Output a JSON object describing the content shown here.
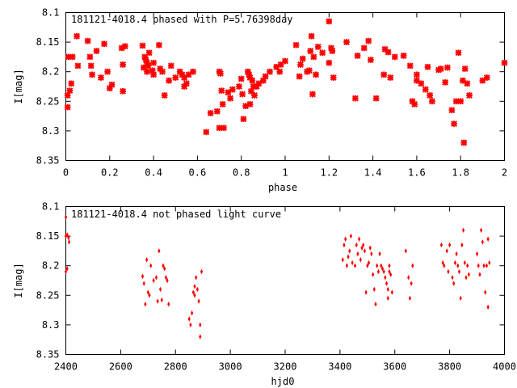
{
  "colors": {
    "points": "#ff0000",
    "axes": "#000000",
    "background": "#ffffff"
  },
  "chart_data": [
    {
      "type": "scatter",
      "title": "181121-4018.4 phased with P=5.76398day",
      "xlabel": "phase",
      "ylabel": "I[mag]",
      "xlim": [
        0,
        2
      ],
      "ylim": [
        8.35,
        8.1
      ],
      "y_inverted": true,
      "grid": false,
      "xticks": [
        "0",
        "0.2",
        "0.4",
        "0.6",
        "0.8",
        "1",
        "1.2",
        "1.4",
        "1.6",
        "1.8",
        "2"
      ],
      "yticks": [
        "8.1",
        "8.15",
        "8.2",
        "8.25",
        "8.3",
        "8.35"
      ],
      "marker": "filled-star",
      "series": [
        {
          "points": [
            [
              0.008,
              8.24
            ],
            [
              0.008,
              8.26
            ],
            [
              0.012,
              8.175
            ],
            [
              0.018,
              8.232
            ],
            [
              0.025,
              8.22
            ],
            [
              0.03,
              8.175
            ],
            [
              0.05,
              8.14
            ],
            [
              0.055,
              8.19
            ],
            [
              0.1,
              8.148
            ],
            [
              0.11,
              8.175
            ],
            [
              0.115,
              8.19
            ],
            [
              0.12,
              8.205
            ],
            [
              0.14,
              8.165
            ],
            [
              0.16,
              8.21
            ],
            [
              0.175,
              8.153
            ],
            [
              0.19,
              8.2
            ],
            [
              0.2,
              8.228
            ],
            [
              0.21,
              8.222
            ],
            [
              0.255,
              8.16
            ],
            [
              0.26,
              8.188
            ],
            [
              0.26,
              8.233
            ],
            [
              0.27,
              8.157
            ],
            [
              0.35,
              8.156
            ],
            [
              0.355,
              8.193
            ],
            [
              0.36,
              8.175
            ],
            [
              0.365,
              8.18
            ],
            [
              0.37,
              8.185
            ],
            [
              0.375,
              8.19
            ],
            [
              0.37,
              8.2
            ],
            [
              0.38,
              8.168
            ],
            [
              0.395,
              8.198
            ],
            [
              0.4,
              8.205
            ],
            [
              0.4,
              8.185
            ],
            [
              0.425,
              8.155
            ],
            [
              0.43,
              8.195
            ],
            [
              0.44,
              8.2
            ],
            [
              0.45,
              8.24
            ],
            [
              0.47,
              8.215
            ],
            [
              0.48,
              8.19
            ],
            [
              0.5,
              8.21
            ],
            [
              0.52,
              8.2
            ],
            [
              0.53,
              8.205
            ],
            [
              0.54,
              8.21
            ],
            [
              0.54,
              8.225
            ],
            [
              0.55,
              8.22
            ],
            [
              0.56,
              8.205
            ],
            [
              0.58,
              8.2
            ],
            [
              0.64,
              8.302
            ],
            [
              0.66,
              8.27
            ],
            [
              0.69,
              8.267
            ],
            [
              0.7,
              8.295
            ],
            [
              0.7,
              8.2
            ],
            [
              0.705,
              8.203
            ],
            [
              0.71,
              8.232
            ],
            [
              0.715,
              8.255
            ],
            [
              0.72,
              8.295
            ],
            [
              0.74,
              8.235
            ],
            [
              0.75,
              8.245
            ],
            [
              0.76,
              8.23
            ],
            [
              0.79,
              8.225
            ],
            [
              0.8,
              8.212
            ],
            [
              0.805,
              8.238
            ],
            [
              0.81,
              8.28
            ],
            [
              0.82,
              8.258
            ],
            [
              0.83,
              8.2
            ],
            [
              0.835,
              8.205
            ],
            [
              0.84,
              8.21
            ],
            [
              0.84,
              8.255
            ],
            [
              0.845,
              8.233
            ],
            [
              0.85,
              8.215
            ],
            [
              0.855,
              8.225
            ],
            [
              0.86,
              8.24
            ],
            [
              0.87,
              8.225
            ],
            [
              0.88,
              8.22
            ],
            [
              0.9,
              8.215
            ],
            [
              0.91,
              8.208
            ],
            [
              0.93,
              8.2
            ],
            [
              0.96,
              8.192
            ],
            [
              0.975,
              8.2
            ],
            [
              0.98,
              8.188
            ],
            [
              1.0,
              8.182
            ],
            [
              1.05,
              8.155
            ],
            [
              1.065,
              8.208
            ],
            [
              1.07,
              8.188
            ],
            [
              1.08,
              8.178
            ],
            [
              1.1,
              8.2
            ],
            [
              1.11,
              8.198
            ],
            [
              1.115,
              8.165
            ],
            [
              1.12,
              8.14
            ],
            [
              1.125,
              8.238
            ],
            [
              1.13,
              8.175
            ],
            [
              1.14,
              8.205
            ],
            [
              1.15,
              8.158
            ],
            [
              1.17,
              8.168
            ],
            [
              1.2,
              8.115
            ],
            [
              1.2,
              8.185
            ],
            [
              1.21,
              8.16
            ],
            [
              1.215,
              8.165
            ],
            [
              1.22,
              8.21
            ],
            [
              1.28,
              8.15
            ],
            [
              1.32,
              8.245
            ],
            [
              1.33,
              8.173
            ],
            [
              1.36,
              8.16
            ],
            [
              1.38,
              8.148
            ],
            [
              1.39,
              8.18
            ],
            [
              1.415,
              8.245
            ],
            [
              1.45,
              8.205
            ],
            [
              1.455,
              8.162
            ],
            [
              1.47,
              8.167
            ],
            [
              1.48,
              8.21
            ],
            [
              1.5,
              8.175
            ],
            [
              1.54,
              8.173
            ],
            [
              1.57,
              8.19
            ],
            [
              1.58,
              8.25
            ],
            [
              1.59,
              8.255
            ],
            [
              1.6,
              8.205
            ],
            [
              1.6,
              8.215
            ],
            [
              1.62,
              8.22
            ],
            [
              1.64,
              8.23
            ],
            [
              1.65,
              8.192
            ],
            [
              1.66,
              8.24
            ],
            [
              1.67,
              8.25
            ],
            [
              1.7,
              8.197
            ],
            [
              1.71,
              8.195
            ],
            [
              1.73,
              8.218
            ],
            [
              1.74,
              8.193
            ],
            [
              1.76,
              8.265
            ],
            [
              1.77,
              8.288
            ],
            [
              1.78,
              8.25
            ],
            [
              1.79,
              8.168
            ],
            [
              1.8,
              8.25
            ],
            [
              1.81,
              8.215
            ],
            [
              1.815,
              8.32
            ],
            [
              1.82,
              8.195
            ],
            [
              1.83,
              8.22
            ],
            [
              1.84,
              8.24
            ],
            [
              1.9,
              8.215
            ],
            [
              1.92,
              8.21
            ],
            [
              2.0,
              8.185
            ]
          ]
        }
      ]
    },
    {
      "type": "scatter",
      "title": "181121-4018.4 not phased light curve",
      "xlabel": "hjd0",
      "ylabel": "I[mag]",
      "xlim": [
        2400,
        4000
      ],
      "ylim": [
        8.35,
        8.1
      ],
      "y_inverted": true,
      "grid": false,
      "xticks": [
        "2400",
        "2600",
        "2800",
        "3000",
        "3200",
        "3400",
        "3600",
        "3800",
        "4000"
      ],
      "yticks": [
        "8.1",
        "8.15",
        "8.2",
        "8.25",
        "8.3",
        "8.35"
      ],
      "marker": "diamond",
      "series": [
        {
          "points": [
            [
              2400,
              8.118
            ],
            [
              2400,
              8.15
            ],
            [
              2400,
              8.21
            ],
            [
              2405,
              8.148
            ],
            [
              2405,
              8.205
            ],
            [
              2410,
              8.153
            ],
            [
              2412,
              8.16
            ],
            [
              2680,
              8.218
            ],
            [
              2685,
              8.23
            ],
            [
              2690,
              8.265
            ],
            [
              2695,
              8.19
            ],
            [
              2700,
              8.245
            ],
            [
              2705,
              8.25
            ],
            [
              2710,
              8.2
            ],
            [
              2720,
              8.225
            ],
            [
              2730,
              8.22
            ],
            [
              2735,
              8.26
            ],
            [
              2740,
              8.175
            ],
            [
              2745,
              8.24
            ],
            [
              2750,
              8.258
            ],
            [
              2755,
              8.2
            ],
            [
              2760,
              8.205
            ],
            [
              2765,
              8.22
            ],
            [
              2770,
              8.225
            ],
            [
              2775,
              8.265
            ],
            [
              2850,
              8.29
            ],
            [
              2855,
              8.3
            ],
            [
              2860,
              8.28
            ],
            [
              2865,
              8.245
            ],
            [
              2870,
              8.25
            ],
            [
              2870,
              8.235
            ],
            [
              2875,
              8.22
            ],
            [
              2880,
              8.24
            ],
            [
              2885,
              8.26
            ],
            [
              2890,
              8.3
            ],
            [
              2890,
              8.32
            ],
            [
              2895,
              8.21
            ],
            [
              3410,
              8.19
            ],
            [
              3415,
              8.165
            ],
            [
              3420,
              8.155
            ],
            [
              3425,
              8.2
            ],
            [
              3430,
              8.185
            ],
            [
              3435,
              8.175
            ],
            [
              3440,
              8.15
            ],
            [
              3445,
              8.195
            ],
            [
              3455,
              8.2
            ],
            [
              3460,
              8.165
            ],
            [
              3465,
              8.18
            ],
            [
              3470,
              8.155
            ],
            [
              3475,
              8.19
            ],
            [
              3480,
              8.17
            ],
            [
              3485,
              8.165
            ],
            [
              3490,
              8.175
            ],
            [
              3495,
              8.245
            ],
            [
              3500,
              8.2
            ],
            [
              3505,
              8.195
            ],
            [
              3510,
              8.17
            ],
            [
              3515,
              8.18
            ],
            [
              3520,
              8.215
            ],
            [
              3525,
              8.24
            ],
            [
              3530,
              8.265
            ],
            [
              3535,
              8.2
            ],
            [
              3540,
              8.21
            ],
            [
              3545,
              8.18
            ],
            [
              3550,
              8.2
            ],
            [
              3555,
              8.205
            ],
            [
              3560,
              8.21
            ],
            [
              3565,
              8.22
            ],
            [
              3570,
              8.23
            ],
            [
              3575,
              8.24
            ],
            [
              3575,
              8.255
            ],
            [
              3580,
              8.21
            ],
            [
              3580,
              8.2
            ],
            [
              3585,
              8.215
            ],
            [
              3590,
              8.245
            ],
            [
              3640,
              8.175
            ],
            [
              3650,
              8.22
            ],
            [
              3655,
              8.255
            ],
            [
              3660,
              8.23
            ],
            [
              3665,
              8.2
            ],
            [
              3770,
              8.165
            ],
            [
              3775,
              8.195
            ],
            [
              3780,
              8.2
            ],
            [
              3790,
              8.175
            ],
            [
              3795,
              8.21
            ],
            [
              3800,
              8.165
            ],
            [
              3810,
              8.22
            ],
            [
              3815,
              8.23
            ],
            [
              3820,
              8.195
            ],
            [
              3825,
              8.18
            ],
            [
              3830,
              8.2
            ],
            [
              3835,
              8.21
            ],
            [
              3840,
              8.255
            ],
            [
              3845,
              8.165
            ],
            [
              3850,
              8.14
            ],
            [
              3855,
              8.195
            ],
            [
              3860,
              8.22
            ],
            [
              3865,
              8.2
            ],
            [
              3870,
              8.215
            ],
            [
              3900,
              8.18
            ],
            [
              3905,
              8.2
            ],
            [
              3910,
              8.215
            ],
            [
              3915,
              8.14
            ],
            [
              3920,
              8.16
            ],
            [
              3925,
              8.2
            ],
            [
              3930,
              8.245
            ],
            [
              3935,
              8.2
            ],
            [
              3940,
              8.155
            ],
            [
              3940,
              8.27
            ],
            [
              3945,
              8.195
            ]
          ]
        }
      ]
    }
  ]
}
